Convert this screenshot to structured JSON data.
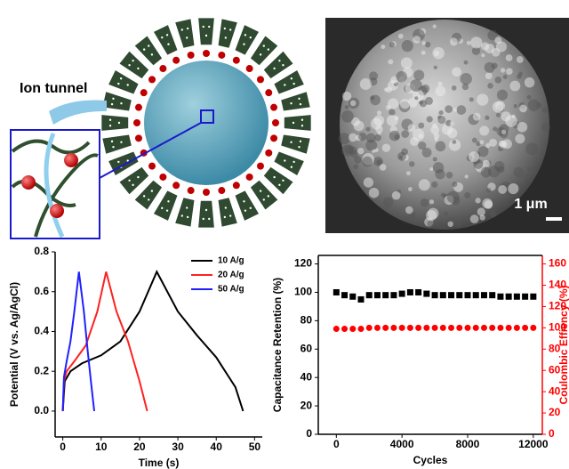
{
  "labels": {
    "ion_tunnel": "Ion tunnel",
    "scale_bar": "1 μm"
  },
  "chart_data": [
    {
      "type": "line",
      "xlabel": "Time (s)",
      "ylabel": "Potential (V vs. Ag/AgCl)",
      "xlim": [
        -2,
        52
      ],
      "xticks": [
        0,
        10,
        20,
        30,
        40,
        50
      ],
      "ylim": [
        -0.13,
        0.8
      ],
      "yticks": [
        {
          "value": 0,
          "label": "0.0"
        },
        0.2,
        0.4,
        0.6,
        0.8
      ],
      "legend": "top-right",
      "series": [
        {
          "name": "10 A/g",
          "color": "#000000",
          "x": [
            0,
            0.5,
            2,
            5,
            10,
            15,
            20,
            24.5,
            30,
            35,
            40,
            45,
            47
          ],
          "values": [
            0,
            0.15,
            0.2,
            0.24,
            0.28,
            0.35,
            0.5,
            0.7,
            0.5,
            0.38,
            0.27,
            0.12,
            0
          ]
        },
        {
          "name": "20 A/g",
          "color": "#ff2020",
          "x": [
            0,
            0.3,
            1,
            3,
            6,
            9,
            11.3,
            14,
            17,
            20,
            22
          ],
          "values": [
            0,
            0.15,
            0.2,
            0.25,
            0.33,
            0.5,
            0.7,
            0.5,
            0.35,
            0.15,
            0
          ]
        },
        {
          "name": "50 A/g",
          "color": "#2020ff",
          "x": [
            0,
            0.3,
            1,
            2,
            3,
            4.2,
            5.5,
            6.5,
            7.5,
            8.2
          ],
          "values": [
            0,
            0.17,
            0.25,
            0.35,
            0.5,
            0.7,
            0.5,
            0.3,
            0.12,
            0
          ]
        }
      ]
    },
    {
      "type": "scatter",
      "xlabel": "Cycles",
      "ylabel": "Capacitance Retention (%)",
      "y2label": "Coulombic Effiency (%)",
      "xlim": [
        -1100,
        12550
      ],
      "xticks": [
        0,
        4000,
        8000,
        12000
      ],
      "ylim": [
        0,
        126
      ],
      "yticks": [
        0,
        20,
        40,
        60,
        80,
        100,
        120
      ],
      "y2lim": [
        0,
        168
      ],
      "y2ticks": [
        0,
        20,
        40,
        60,
        80,
        100,
        120,
        140,
        160
      ],
      "y2color": "#ff0000",
      "series": [
        {
          "color": "#000000",
          "x": [
            0,
            500,
            1000,
            1500,
            2000,
            2500,
            3000,
            3500,
            4000,
            4500,
            5000,
            5500,
            6000,
            6500,
            7000,
            7500,
            8000,
            8500,
            9000,
            9500,
            10000,
            10500,
            11000,
            11500,
            12000
          ],
          "values": [
            100,
            98,
            97,
            95,
            98,
            98,
            98,
            98,
            99,
            100,
            100,
            99,
            98,
            98,
            98,
            98,
            98,
            98,
            98,
            98,
            97,
            97,
            97,
            97,
            97
          ]
        },
        {
          "color": "#ff0000",
          "axis": "y2",
          "x": [
            0,
            500,
            1000,
            1500,
            2000,
            2500,
            3000,
            3500,
            4000,
            4500,
            5000,
            5500,
            6000,
            6500,
            7000,
            7500,
            8000,
            8500,
            9000,
            9500,
            10000,
            10500,
            11000,
            11500,
            12000
          ],
          "values": [
            99,
            99,
            99,
            99,
            100,
            100,
            100,
            100,
            100,
            100,
            100,
            100,
            100,
            100,
            100,
            100,
            100,
            100,
            100,
            100,
            100,
            100,
            100,
            100,
            100
          ]
        }
      ]
    }
  ]
}
